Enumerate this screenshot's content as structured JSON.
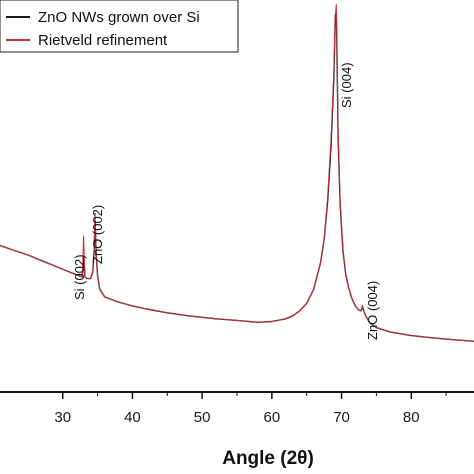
{
  "chart_data": {
    "type": "line",
    "xlabel": "Angle (2θ)",
    "ylabel": "",
    "xlim": [
      21,
      89
    ],
    "ylim": [
      0,
      100
    ],
    "x_ticks": [
      30,
      40,
      50,
      60,
      70,
      80
    ],
    "grid": false,
    "legend": "top-left",
    "series": [
      {
        "name": "ZnO NWs grown over Si",
        "color": "#1a1a1a",
        "x": [
          21,
          23,
          25,
          27,
          29,
          31,
          32,
          32.8,
          33.0,
          33.2,
          33.5,
          34.0,
          34.3,
          34.5,
          34.65,
          34.8,
          35.0,
          35.3,
          36,
          37,
          38,
          40,
          42,
          45,
          48,
          50,
          52,
          55,
          58,
          60,
          62,
          63,
          64,
          65,
          66,
          67,
          67.5,
          68,
          68.5,
          68.9,
          69.1,
          69.25,
          69.35,
          69.5,
          69.8,
          70.2,
          70.6,
          71,
          71.5,
          72,
          72.5,
          72.8,
          73.0,
          73.2,
          73.5,
          74,
          75,
          77,
          80,
          83,
          86,
          89
        ],
        "values": [
          37.5,
          36.2,
          35,
          33.5,
          32,
          30.5,
          29.8,
          29.2,
          34.5,
          29.2,
          28.8,
          28.8,
          30.5,
          36,
          44,
          35,
          29.5,
          26,
          24,
          23.3,
          22.6,
          21.6,
          20.8,
          19.8,
          19,
          18.6,
          18.2,
          17.8,
          17.3,
          17.5,
          18.2,
          19,
          20.3,
          22.3,
          26,
          33,
          39,
          49,
          64,
          82,
          98,
          99,
          88,
          66,
          48,
          36,
          30,
          26.5,
          23.5,
          21.5,
          20.5,
          20.3,
          21.5,
          20.2,
          18.8,
          17.3,
          15.9,
          14.7,
          13.8,
          13.2,
          12.7,
          12.3
        ]
      },
      {
        "name": "Rietveld refinement",
        "color": "#c4323a",
        "x": [
          21,
          23,
          25,
          27,
          29,
          31,
          32,
          32.8,
          33.0,
          33.2,
          33.5,
          34.0,
          34.3,
          34.5,
          34.65,
          34.8,
          35.0,
          35.3,
          36,
          37,
          38,
          40,
          42,
          45,
          48,
          50,
          52,
          55,
          58,
          60,
          62,
          63,
          64,
          65,
          66,
          67,
          67.5,
          68,
          68.5,
          68.9,
          69.1,
          69.25,
          69.35,
          69.5,
          69.8,
          70.2,
          70.6,
          71,
          71.5,
          72,
          72.5,
          72.8,
          73.0,
          73.2,
          73.5,
          74,
          75,
          77,
          80,
          83,
          86,
          89
        ],
        "values": [
          37.5,
          36.2,
          35,
          33.5,
          32,
          30.5,
          29.8,
          29.2,
          40,
          29.2,
          28.8,
          28.8,
          30.5,
          37,
          46,
          35.5,
          29.5,
          26,
          24,
          23.3,
          22.6,
          21.6,
          20.8,
          19.8,
          19,
          18.6,
          18.2,
          17.8,
          17.3,
          17.5,
          18.2,
          19,
          20.3,
          22.3,
          26,
          33,
          39,
          50,
          66,
          84,
          98,
          101,
          90,
          68,
          49,
          36.5,
          30,
          26.5,
          23.5,
          21.5,
          20.5,
          20.3,
          21.8,
          20.2,
          18.8,
          17.3,
          15.9,
          14.7,
          13.8,
          13.2,
          12.7,
          12.3
        ]
      }
    ],
    "annotations": [
      {
        "text": "Si (002)",
        "x": 33.0
      },
      {
        "text": "ZnO (002)",
        "x": 34.65
      },
      {
        "text": "Si (004)",
        "x": 69.25
      },
      {
        "text": "ZnO (004)",
        "x": 73.0
      }
    ]
  }
}
